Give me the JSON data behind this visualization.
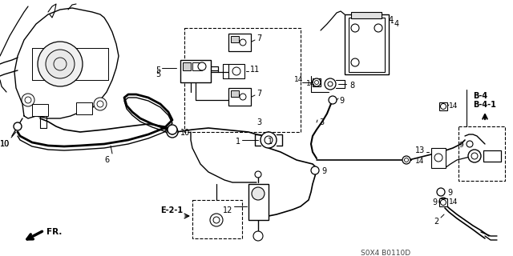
{
  "bg_color": "#ffffff",
  "diagram_code": "S0X4 B0110D",
  "fr_label": "FR.",
  "B4_label": "B-4",
  "B41_label": "B-4-1",
  "E21_label": "E-2-1"
}
